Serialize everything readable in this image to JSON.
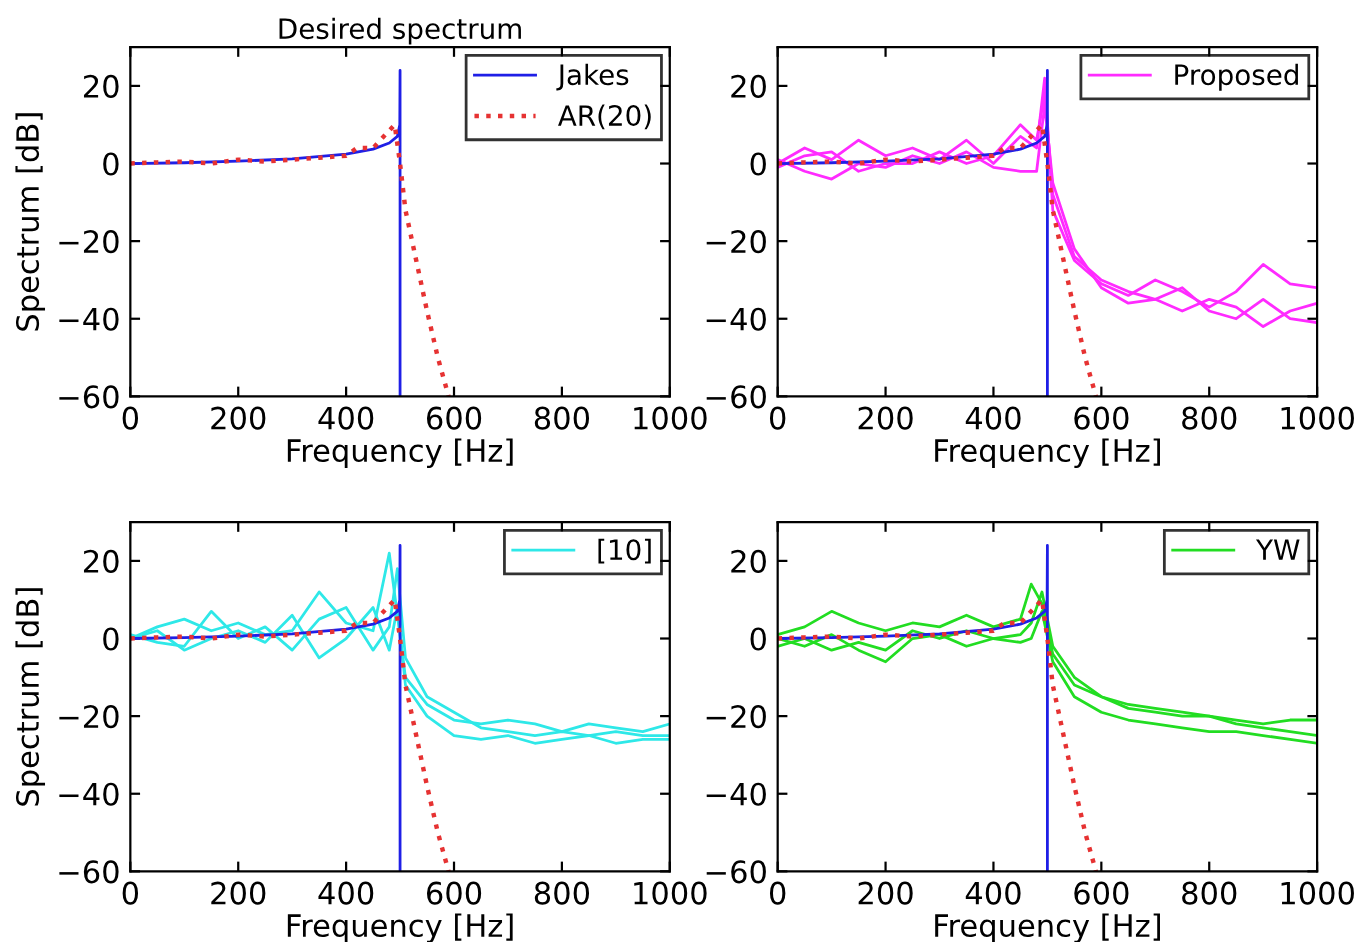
{
  "chart_data": [
    {
      "type": "line",
      "title": "Desired spectrum",
      "xlabel": "Frequency [Hz]",
      "ylabel": "Spectrum [dB]",
      "xlim": [
        0,
        1000
      ],
      "ylim": [
        -60,
        30
      ],
      "xticks": [
        0,
        200,
        400,
        600,
        800,
        1000
      ],
      "yticks": [
        -60,
        -40,
        -20,
        0,
        20
      ],
      "grid": false,
      "legend": "top right",
      "series": [
        {
          "name": "Jakes",
          "color": "#1f1fe6",
          "line_style": "solid",
          "x": [
            0,
            100,
            200,
            300,
            400,
            450,
            480,
            495,
            499.5,
            500,
            500
          ],
          "values": [
            0,
            0.2,
            0.6,
            1.2,
            2.4,
            3.7,
            5.3,
            7,
            10,
            24,
            -60
          ]
        },
        {
          "name": "AR(20)",
          "color": "#e63232",
          "line_style": "dotted",
          "x": [
            0,
            50,
            100,
            150,
            200,
            250,
            300,
            350,
            400,
            420,
            450,
            470,
            490,
            500,
            510,
            530,
            550,
            570,
            590
          ],
          "values": [
            0,
            0.3,
            0.5,
            0,
            1,
            0.5,
            1,
            1.5,
            2,
            4,
            4,
            7,
            10,
            0,
            -12,
            -25,
            -38,
            -50,
            -60
          ]
        }
      ]
    },
    {
      "type": "line",
      "xlabel": "Frequency [Hz]",
      "xlim": [
        0,
        1000
      ],
      "ylim": [
        -60,
        30
      ],
      "xticks": [
        0,
        200,
        400,
        600,
        800,
        1000
      ],
      "yticks": [
        -60,
        -40,
        -20,
        0,
        20
      ],
      "grid": false,
      "legend": "top right",
      "series": [
        {
          "name": "Proposed",
          "color": "#ff2bff",
          "line_style": "solid",
          "x": [
            0,
            50,
            100,
            150,
            200,
            250,
            300,
            350,
            400,
            450,
            480,
            495,
            510,
            550,
            600,
            650,
            700,
            750,
            800,
            850,
            900,
            950,
            1000
          ],
          "values": [
            0,
            4,
            1,
            6,
            2,
            4,
            1,
            6,
            0,
            7,
            4,
            22,
            -12,
            -25,
            -31,
            -34,
            -30,
            -33,
            -37,
            -33,
            -26,
            -31,
            -32
          ]
        },
        {
          "color": "#ff2bff",
          "line_style": "solid",
          "x": [
            0,
            50,
            100,
            150,
            200,
            250,
            300,
            350,
            400,
            450,
            480,
            495,
            510,
            550,
            600,
            650,
            700,
            750,
            800,
            850,
            900,
            950,
            1000
          ],
          "values": [
            1,
            -2,
            -4,
            0,
            -1,
            2,
            0,
            3,
            -1,
            -2,
            -2,
            15,
            -5,
            -22,
            -32,
            -36,
            -35,
            -32,
            -38,
            -40,
            -35,
            -40,
            -41
          ]
        },
        {
          "color": "#ff2bff",
          "line_style": "solid",
          "x": [
            0,
            50,
            100,
            150,
            200,
            250,
            300,
            350,
            400,
            450,
            480,
            495,
            510,
            550,
            600,
            650,
            700,
            750,
            800,
            850,
            900,
            950,
            1000
          ],
          "values": [
            -1,
            2,
            3,
            -2,
            0,
            0,
            3,
            0,
            2,
            10,
            6,
            18,
            -8,
            -24,
            -30,
            -33,
            -35,
            -38,
            -35,
            -37,
            -42,
            -38,
            -36
          ]
        },
        {
          "color": "#1f1fe6",
          "line_style": "solid",
          "x": [
            0,
            100,
            200,
            300,
            400,
            450,
            480,
            495,
            499.5,
            500,
            500
          ],
          "values": [
            0,
            0.2,
            0.6,
            1.2,
            2.4,
            3.7,
            5.3,
            7,
            10,
            24,
            -60
          ]
        },
        {
          "color": "#e63232",
          "line_style": "dotted",
          "x": [
            0,
            50,
            100,
            150,
            200,
            250,
            300,
            350,
            400,
            420,
            450,
            470,
            490,
            500,
            510,
            530,
            550,
            570,
            590
          ],
          "values": [
            0,
            0.3,
            0.5,
            0,
            1,
            0.5,
            1,
            1.5,
            2,
            4,
            4,
            7,
            10,
            0,
            -12,
            -25,
            -38,
            -50,
            -60
          ]
        }
      ]
    },
    {
      "type": "line",
      "xlabel": "Frequency [Hz]",
      "ylabel": "Spectrum [dB]",
      "xlim": [
        0,
        1000
      ],
      "ylim": [
        -60,
        30
      ],
      "xticks": [
        0,
        200,
        400,
        600,
        800,
        1000
      ],
      "yticks": [
        -60,
        -40,
        -20,
        0,
        20
      ],
      "grid": false,
      "legend": "top right",
      "series": [
        {
          "name": "[10]",
          "color": "#2ee8e8",
          "line_style": "solid",
          "x": [
            0,
            50,
            100,
            150,
            200,
            250,
            300,
            350,
            400,
            450,
            480,
            495,
            510,
            550,
            600,
            650,
            700,
            750,
            800,
            850,
            900,
            950,
            1000
          ],
          "values": [
            0,
            3,
            5,
            2,
            4,
            1,
            2,
            12,
            4,
            2,
            22,
            6,
            -10,
            -17,
            -21,
            -22,
            -21,
            -22,
            -24,
            -22,
            -23,
            -24,
            -22
          ]
        },
        {
          "color": "#2ee8e8",
          "line_style": "solid",
          "x": [
            0,
            50,
            100,
            150,
            200,
            250,
            300,
            350,
            400,
            450,
            480,
            495,
            510,
            550,
            600,
            650,
            700,
            750,
            800,
            850,
            900,
            950,
            1000
          ],
          "values": [
            1,
            -1,
            -2,
            7,
            0,
            3,
            -3,
            5,
            8,
            -3,
            3,
            18,
            -5,
            -15,
            -19,
            -23,
            -24,
            -25,
            -24,
            -25,
            -24,
            -25,
            -25
          ]
        },
        {
          "color": "#2ee8e8",
          "line_style": "solid",
          "x": [
            0,
            50,
            100,
            150,
            200,
            250,
            300,
            350,
            400,
            450,
            480,
            495,
            510,
            550,
            600,
            650,
            700,
            750,
            800,
            850,
            900,
            950,
            1000
          ],
          "values": [
            0,
            2,
            -3,
            0,
            2,
            -1,
            6,
            -5,
            0,
            8,
            -3,
            8,
            -12,
            -20,
            -25,
            -26,
            -25,
            -27,
            -26,
            -25,
            -27,
            -26,
            -26
          ]
        },
        {
          "color": "#1f1fe6",
          "line_style": "solid",
          "x": [
            0,
            100,
            200,
            300,
            400,
            450,
            480,
            495,
            499.5,
            500,
            500
          ],
          "values": [
            0,
            0.2,
            0.6,
            1.2,
            2.4,
            3.7,
            5.3,
            7,
            10,
            24,
            -60
          ]
        },
        {
          "color": "#e63232",
          "line_style": "dotted",
          "x": [
            0,
            50,
            100,
            150,
            200,
            250,
            300,
            350,
            400,
            420,
            450,
            470,
            490,
            500,
            510,
            530,
            550,
            570,
            590
          ],
          "values": [
            0,
            0.3,
            0.5,
            0,
            1,
            0.5,
            1,
            1.5,
            2,
            4,
            4,
            7,
            10,
            0,
            -12,
            -25,
            -38,
            -50,
            -60
          ]
        }
      ]
    },
    {
      "type": "line",
      "xlabel": "Frequency [Hz]",
      "xlim": [
        0,
        1000
      ],
      "ylim": [
        -60,
        30
      ],
      "xticks": [
        0,
        200,
        400,
        600,
        800,
        1000
      ],
      "yticks": [
        -60,
        -40,
        -20,
        0,
        20
      ],
      "grid": false,
      "legend": "top right",
      "series": [
        {
          "name": "YW",
          "color": "#22dd22",
          "line_style": "solid",
          "x": [
            0,
            50,
            100,
            150,
            200,
            250,
            300,
            350,
            400,
            450,
            470,
            490,
            510,
            550,
            600,
            650,
            700,
            750,
            800,
            850,
            900,
            950,
            1000
          ],
          "values": [
            1,
            3,
            7,
            4,
            2,
            4,
            3,
            6,
            3,
            5,
            14,
            9,
            -4,
            -12,
            -15,
            -17,
            -18,
            -19,
            -20,
            -21,
            -22,
            -21,
            -21
          ]
        },
        {
          "color": "#22dd22",
          "line_style": "solid",
          "x": [
            0,
            50,
            100,
            150,
            200,
            250,
            300,
            350,
            400,
            450,
            470,
            490,
            510,
            550,
            600,
            650,
            700,
            750,
            800,
            850,
            900,
            950,
            1000
          ],
          "values": [
            -2,
            0,
            -3,
            -1,
            -3,
            2,
            0,
            2,
            0,
            1,
            4,
            12,
            -2,
            -10,
            -15,
            -18,
            -19,
            -20,
            -20,
            -22,
            -23,
            -24,
            -25
          ]
        },
        {
          "color": "#22dd22",
          "line_style": "solid",
          "x": [
            0,
            50,
            100,
            150,
            200,
            250,
            300,
            350,
            400,
            450,
            470,
            490,
            510,
            550,
            600,
            650,
            700,
            750,
            800,
            850,
            900,
            950,
            1000
          ],
          "values": [
            0,
            -2,
            1,
            -3,
            -6,
            0,
            1,
            -2,
            0,
            -1,
            0,
            7,
            -6,
            -15,
            -19,
            -21,
            -22,
            -23,
            -24,
            -24,
            -25,
            -26,
            -27
          ]
        },
        {
          "color": "#1f1fe6",
          "line_style": "solid",
          "x": [
            0,
            100,
            200,
            300,
            400,
            450,
            480,
            495,
            499.5,
            500,
            500
          ],
          "values": [
            0,
            0.2,
            0.6,
            1.2,
            2.4,
            3.7,
            5.3,
            7,
            10,
            24,
            -60
          ]
        },
        {
          "color": "#e63232",
          "line_style": "dotted",
          "x": [
            0,
            50,
            100,
            150,
            200,
            250,
            300,
            350,
            400,
            420,
            450,
            470,
            490,
            500,
            510,
            530,
            550,
            570,
            590
          ],
          "values": [
            0,
            0.3,
            0.5,
            0,
            1,
            0.5,
            1,
            1.5,
            2,
            4,
            4,
            7,
            10,
            0,
            -12,
            -25,
            -38,
            -50,
            -60
          ]
        }
      ]
    }
  ]
}
